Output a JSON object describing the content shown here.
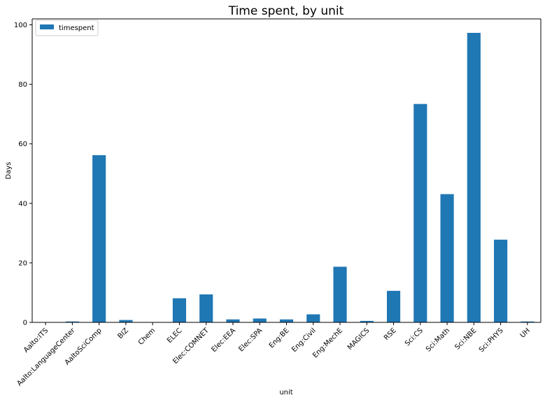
{
  "chart_data": {
    "type": "bar",
    "title": "Time spent, by unit",
    "xlabel": "unit",
    "ylabel": "Days",
    "ylim": [
      0,
      102
    ],
    "yticks": [
      0,
      20,
      40,
      60,
      80,
      100
    ],
    "grid": false,
    "legend_position": "top-left",
    "categories": [
      "Aalto:ITS",
      "Aalto:LanguageCenter",
      "AaltoSciComp",
      "BIZ",
      "Chem",
      "ELEC",
      "Elec:COMNET",
      "Elec:EEA",
      "Elec:SPA",
      "Eng:BE",
      "Eng:Civil",
      "Eng:MechE",
      "MAGICS",
      "RSE",
      "Sci:CS",
      "Sci:Math",
      "Sci:NBE",
      "Sci:PHYS",
      "UH"
    ],
    "series": [
      {
        "name": "timespent",
        "color": "#1f77b4",
        "values": [
          0.05,
          0.3,
          56.2,
          0.8,
          0.1,
          8.1,
          9.4,
          1.0,
          1.3,
          1.0,
          2.7,
          18.7,
          0.5,
          10.6,
          73.4,
          43.1,
          97.3,
          27.8,
          0.3
        ]
      }
    ]
  }
}
